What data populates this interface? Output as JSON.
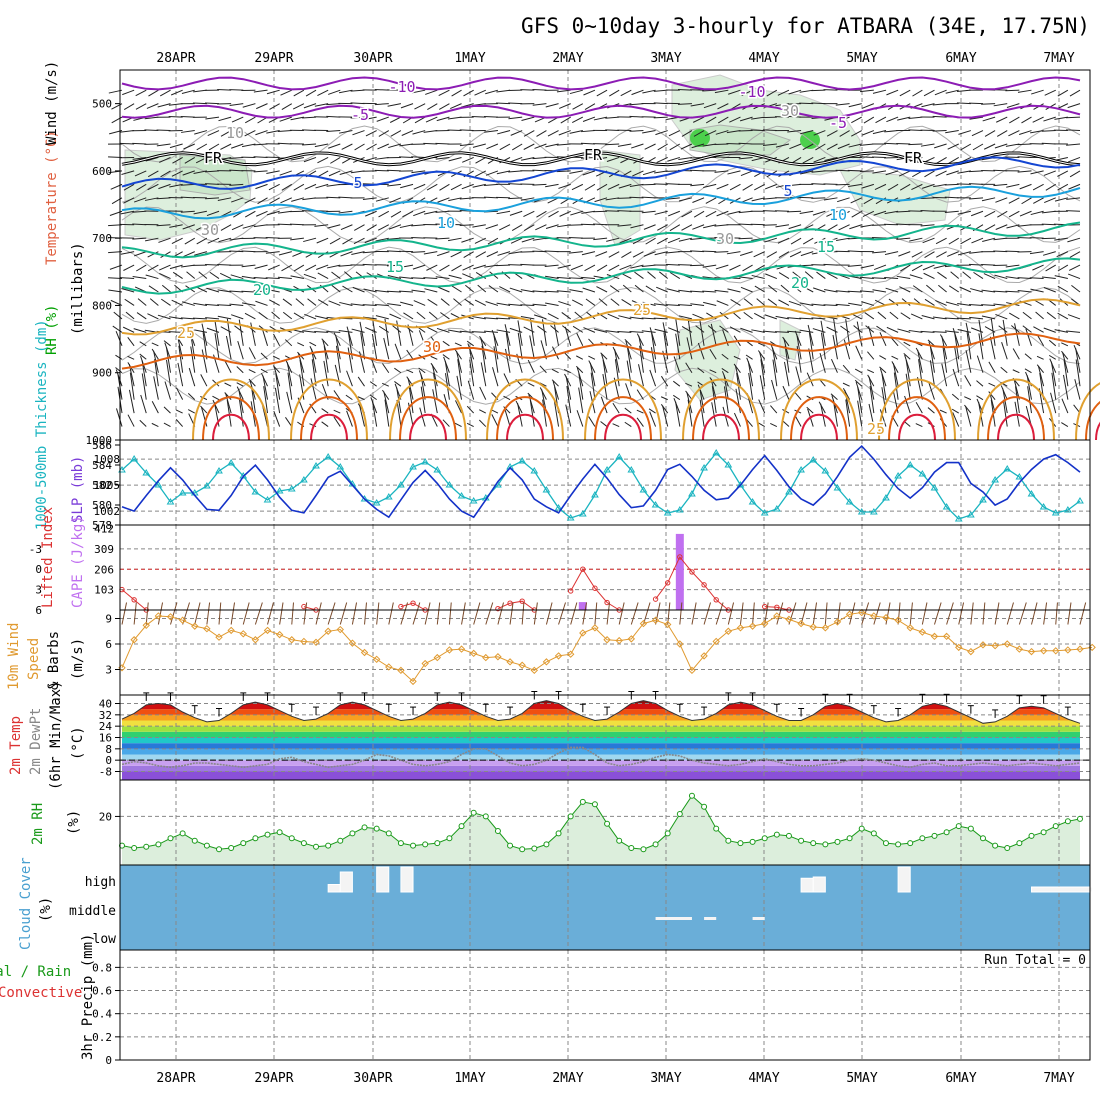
{
  "title": "GFS 0~10day 3-hourly for ATBARA (34E, 17.75N)",
  "dates": [
    "28APR",
    "29APR",
    "30APR",
    "1MAY",
    "2MAY",
    "3MAY",
    "4MAY",
    "5MAY",
    "6MAY",
    "7MAY"
  ],
  "colors": {
    "temp_cold": "#8c1cb4",
    "temp_cool": "#1446d2",
    "temp_mid": "#1aa0dc",
    "temp_warm": "#14b48c",
    "temp_hot": "#e0a030",
    "temp_vhot": "#e06010",
    "temp_xhot": "#dc1e3c",
    "rh_fill": "#c8e6c8",
    "slp_line": "#1432c8",
    "thickness_line": "#1ab4c0",
    "cape_bar": "#c070f0",
    "lifted_line": "#dc3232",
    "wind_speed_line": "#e09a30",
    "dewpt_line": "#888888",
    "rh2m_line": "#1a9a1a",
    "cloud_bg": "#6aaed8"
  },
  "labels": {
    "upper_wind": "Wind (m/s)",
    "upper_temp": "Temperature (°C)",
    "upper_rh": "RH (%)",
    "upper_units": "(millibars)",
    "thickness": "1000-500mb Thickness (dm)",
    "slp": "SLP (mb)",
    "lifted": "Lifted Index",
    "cape": "CAPE (J/kg)",
    "wind10_a": "10m Wind",
    "wind10_b": "Speed",
    "wind10_c": "& Barbs",
    "wind10_units": "(m/s)",
    "temp2m_a": "2m Temp",
    "temp2m_b": "2m DewPt",
    "temp2m_c": "(6hr Min/Max)",
    "temp2m_units": "(°C)",
    "rh2m": "2m RH",
    "rh2m_units": "(%)",
    "cloud_a": "Cloud Cover",
    "cloud_units": "(%)",
    "cloud_high": "high",
    "cloud_middle": "middle",
    "cloud_low": "low",
    "precip_a": "Total / Rain",
    "precip_b": "Convective",
    "precip_units": "3hr Precip (mm)",
    "run_total": "Run Total = 0",
    "frz": "FR"
  },
  "chart_data": [
    {
      "panel": "upper_air",
      "type": "line",
      "ylabel": "millibars",
      "yticks": [
        500,
        600,
        700,
        800,
        900,
        1000
      ],
      "ylim": [
        450,
        1000
      ],
      "isotherms": [
        {
          "value": -10,
          "pressure": 470
        },
        {
          "value": -5,
          "pressure": 512
        },
        {
          "value": 0,
          "pressure": 582,
          "label": "FR"
        },
        {
          "value": 5,
          "pressure": 622
        },
        {
          "value": 10,
          "pressure": 665
        },
        {
          "value": 15,
          "pressure": 722
        },
        {
          "value": 20,
          "pressure": 775
        },
        {
          "value": 25,
          "pressure": 835
        },
        {
          "value": 30,
          "pressure": 885
        }
      ],
      "isotherm_labels": [
        "-10",
        "-5",
        "5",
        "10",
        "15",
        "20",
        "25",
        "30"
      ],
      "rh_labels": [
        "10",
        "30"
      ]
    },
    {
      "panel": "slp_thickness",
      "type": "line",
      "slp_ticks": [
        1002,
        1005,
        1008
      ],
      "thickness_ticks": [
        578,
        580,
        582,
        584,
        586
      ],
      "slp": [
        1002.5,
        1002,
        1003.8,
        1005.5,
        1007,
        1005.6,
        1003.8,
        1002.2,
        1002.1,
        1003.8,
        1006,
        1007.3,
        1005.6,
        1003.6,
        1002.1,
        1001.8,
        1003.8,
        1005.9,
        1006.6,
        1005,
        1003.4,
        1002.2,
        1001.3,
        1003.3,
        1005.3,
        1006.7,
        1005.2,
        1003.4,
        1002,
        1001.3,
        1003.3,
        1005.4,
        1007,
        1005.6,
        1003.4,
        1002.5,
        1001.8,
        1003.8,
        1005.7,
        1007.4,
        1005.8,
        1003.9,
        1002.4,
        1002.6,
        1004.4,
        1006.8,
        1007.4,
        1006,
        1004.4,
        1003.3,
        1003.5,
        1005,
        1006.8,
        1008.4,
        1006.7,
        1004.8,
        1003.4,
        1002.7,
        1004,
        1006,
        1008.2,
        1009.5,
        1008,
        1006.2,
        1004.6,
        1003.5,
        1004.7,
        1006.5,
        1007.6,
        1007.6,
        1005.2,
        1004.2,
        1002.7,
        1003.4,
        1005.3,
        1006.8,
        1008,
        1008.5,
        1007.6,
        1006.5
      ],
      "thickness": [
        583.5,
        584.6,
        583.2,
        582,
        580.3,
        581.2,
        581.2,
        581.9,
        583.4,
        584.2,
        582.9,
        581.3,
        580.5,
        581.4,
        581.6,
        582.5,
        583.9,
        584.8,
        583.8,
        582.1,
        580.6,
        580.2,
        580.8,
        582,
        583.8,
        584.3,
        583.5,
        582,
        580.9,
        580.4,
        580.7,
        582,
        583.8,
        584.4,
        583.4,
        581.5,
        579.7,
        578.7,
        579.1,
        581,
        583.5,
        584.8,
        583.5,
        581.5,
        580,
        579.2,
        579.5,
        581.1,
        583.7,
        585.2,
        584,
        582,
        580.3,
        579.2,
        579.6,
        581.3,
        583.5,
        584.5,
        583.4,
        581.7,
        580.3,
        579.3,
        579.3,
        580.7,
        582.9,
        584,
        583.1,
        581.7,
        579.8,
        578.6,
        579,
        580.5,
        582.5,
        583.6,
        582.8,
        581.1,
        579.8,
        579.2,
        579.5,
        580.4
      ]
    },
    {
      "panel": "cape_lifted",
      "type": "bar",
      "cape_ticks": [
        103,
        206,
        309,
        412
      ],
      "lifted_ticks": [
        6,
        3,
        0,
        -3
      ],
      "cape_bars": [
        {
          "x_index": 38,
          "value": 40
        },
        {
          "x_index": 46,
          "value": 385
        }
      ],
      "lifted_segments": [
        {
          "start": 0,
          "values": [
            3,
            4.5,
            6
          ]
        },
        {
          "start": 15,
          "values": [
            5.5,
            6
          ]
        },
        {
          "start": 23,
          "values": [
            5.5,
            5,
            6
          ]
        },
        {
          "start": 31,
          "values": [
            5.8,
            5,
            4.7,
            6
          ]
        },
        {
          "start": 37,
          "values": [
            3.2,
            0,
            2.8,
            4.9,
            6
          ]
        },
        {
          "start": 44,
          "values": [
            4.4,
            2,
            -1.8,
            0.4,
            2.3,
            4.5,
            6
          ]
        },
        {
          "start": 53,
          "values": [
            5.5,
            5.6,
            6
          ]
        }
      ]
    },
    {
      "panel": "wind10",
      "type": "line",
      "yticks": [
        3,
        6,
        9
      ],
      "ylim": [
        0,
        10
      ],
      "speed": [
        3.2,
        6.5,
        8.2,
        9.3,
        9.2,
        8.8,
        8.1,
        7.8,
        6.8,
        7.6,
        7.2,
        6.5,
        7.6,
        7.1,
        6.5,
        6.3,
        6.2,
        7.5,
        7.7,
        6.1,
        5,
        4.2,
        3.3,
        2.9,
        1.6,
        3.7,
        4.4,
        5.3,
        5.4,
        4.9,
        4.4,
        4.5,
        3.9,
        3.5,
        2.9,
        3.9,
        4.6,
        4.8,
        7.3,
        7.9,
        6.5,
        6.4,
        6.6,
        8.4,
        8.8,
        8.3,
        6,
        2.9,
        4.6,
        6.3,
        7.5,
        7.9,
        8.1,
        8.4,
        9.3,
        8.9,
        8.4,
        8,
        7.9,
        8.6,
        9.5,
        9.7,
        9.3,
        9.1,
        8.8,
        7.9,
        7.4,
        6.9,
        6.9,
        5.6,
        5.1,
        5.9,
        5.8,
        6,
        5.4,
        5.1,
        5.2,
        5.2,
        5.3,
        5.4,
        5.6
      ]
    },
    {
      "panel": "temp2m",
      "type": "area",
      "yticks": [
        -8,
        0,
        8,
        16,
        24,
        32,
        40
      ],
      "ylim": [
        -14,
        46
      ],
      "temp": [
        29,
        33,
        39,
        40,
        39,
        34,
        30,
        27,
        28,
        33,
        39,
        41,
        39,
        35,
        31,
        28,
        29,
        33,
        39,
        41,
        39,
        35,
        31,
        28,
        29,
        33,
        39,
        41,
        39,
        35,
        31,
        28,
        29,
        33,
        40,
        42,
        40,
        35,
        31,
        28,
        29,
        34,
        40,
        42,
        40,
        35,
        31,
        28,
        29,
        33,
        39,
        41,
        39,
        35,
        31,
        28,
        28,
        32,
        38,
        40,
        38,
        34,
        30,
        27,
        28,
        32,
        38,
        40,
        38,
        34,
        30,
        26,
        27,
        31,
        37,
        38,
        37,
        33,
        29,
        26
      ],
      "dewpt": [
        -3,
        -1,
        -2,
        -4,
        -5,
        -4,
        -2,
        -2,
        -3,
        -4,
        -5,
        -4,
        -3,
        1,
        2,
        -1,
        -3,
        -5,
        -4,
        -3,
        0,
        4,
        3,
        0,
        -3,
        -4,
        -3,
        -1,
        4,
        8,
        8,
        3,
        -2,
        -4,
        -3,
        0,
        5,
        9,
        9,
        4,
        -2,
        -4,
        -3,
        -1,
        2,
        4,
        3,
        0,
        -2,
        -3,
        -4,
        -3,
        -1,
        1,
        -1,
        -3,
        -4,
        -4,
        -3,
        -2,
        0,
        1,
        0,
        -2,
        -4,
        -5,
        -3,
        -2,
        -4,
        -4,
        -3,
        -2,
        -3,
        -4,
        -3,
        -2,
        -3,
        -4,
        -3,
        -2
      ]
    },
    {
      "panel": "rh2m",
      "type": "area",
      "yticks": [
        20
      ],
      "ylim": [
        0,
        35
      ],
      "rh": [
        8,
        7,
        7.5,
        8.5,
        11,
        13,
        10,
        8,
        6.5,
        7,
        9,
        11,
        12.5,
        13.5,
        11,
        9,
        7.5,
        8,
        10,
        13,
        15.5,
        15,
        13,
        9,
        8,
        8.5,
        9,
        11,
        16,
        21.5,
        20,
        14,
        8,
        6.5,
        6.8,
        8.5,
        13,
        20,
        26,
        25,
        17,
        10,
        7,
        6.5,
        8.5,
        13,
        21,
        28.5,
        24,
        15,
        10,
        9,
        9.5,
        11,
        12.5,
        12,
        10,
        9,
        8.5,
        9.5,
        11,
        15,
        13,
        9,
        8.5,
        9,
        11,
        12,
        13.5,
        16,
        15,
        11,
        8,
        7,
        9,
        12,
        13.5,
        16,
        18,
        19
      ]
    },
    {
      "panel": "cloud",
      "type": "bar",
      "levels": [
        "high",
        "middle",
        "low"
      ],
      "high_bars": [
        {
          "from": 17,
          "to": 18,
          "value": 30
        },
        {
          "from": 18,
          "to": 19,
          "value": 80
        },
        {
          "from": 21,
          "to": 22,
          "value": 100
        },
        {
          "from": 23,
          "to": 24,
          "value": 100
        },
        {
          "from": 56,
          "to": 57,
          "value": 55
        },
        {
          "from": 57,
          "to": 58,
          "value": 60
        },
        {
          "from": 64,
          "to": 65,
          "value": 100
        },
        {
          "from": 75,
          "to": 80,
          "value": 20
        }
      ],
      "middle_bars": [
        {
          "from": 44,
          "to": 47,
          "value": 10
        },
        {
          "from": 48,
          "to": 49,
          "value": 10
        },
        {
          "from": 52,
          "to": 53,
          "value": 10
        }
      ]
    },
    {
      "panel": "precip",
      "type": "bar",
      "yticks": [
        0,
        0.2,
        0.4,
        0.6,
        0.8
      ],
      "ylim": [
        0,
        0.95
      ],
      "values": []
    }
  ]
}
